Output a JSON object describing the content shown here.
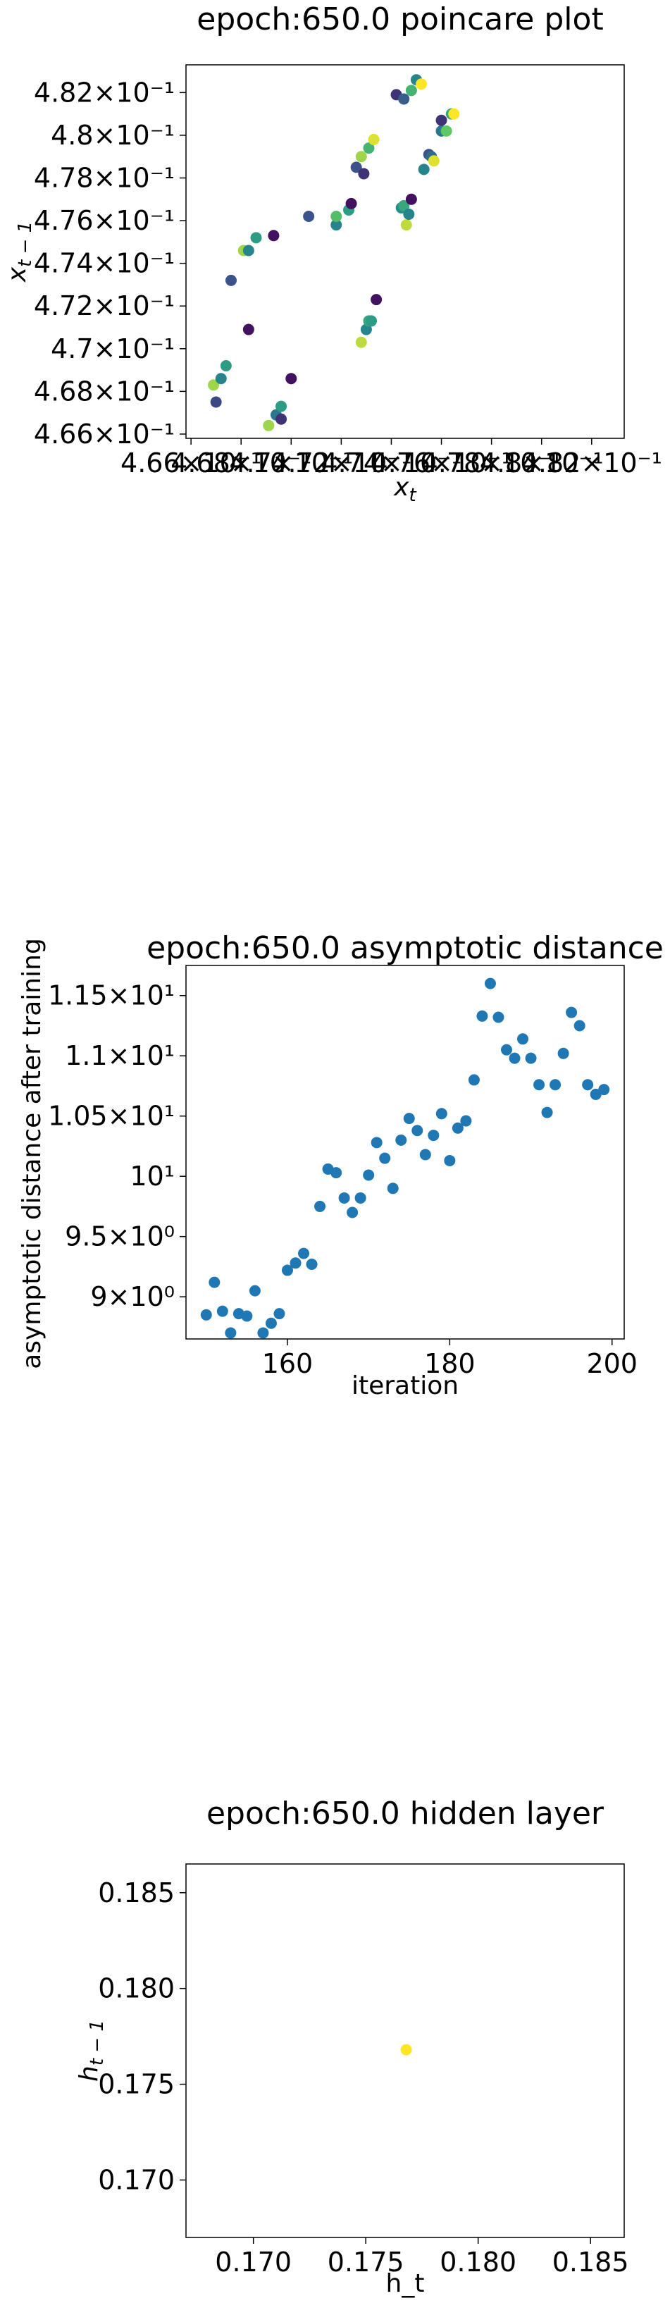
{
  "chart_data": [
    {
      "type": "scatter",
      "title": "epoch:650.0 poincare plot",
      "xlabel": "x_t",
      "ylabel": "x_{t-1}",
      "x_ticks": [
        {
          "value": 0.466,
          "label": "4.66×10⁻¹"
        },
        {
          "value": 0.468,
          "label": "4.68×10⁻¹"
        },
        {
          "value": 0.47,
          "label": "4.7×10⁻¹"
        },
        {
          "value": 0.472,
          "label": "4.72×10⁻¹"
        },
        {
          "value": 0.474,
          "label": "4.74×10⁻¹"
        },
        {
          "value": 0.476,
          "label": "4.76×10⁻¹"
        },
        {
          "value": 0.478,
          "label": "4.78×10⁻¹"
        },
        {
          "value": 0.48,
          "label": "4.8×10⁻¹"
        },
        {
          "value": 0.482,
          "label": "4.82×10⁻¹"
        }
      ],
      "y_ticks": [
        {
          "value": 0.466,
          "label": "4.66×10⁻¹"
        },
        {
          "value": 0.468,
          "label": "4.68×10⁻¹"
        },
        {
          "value": 0.47,
          "label": "4.7×10⁻¹"
        },
        {
          "value": 0.472,
          "label": "4.72×10⁻¹"
        },
        {
          "value": 0.474,
          "label": "4.74×10⁻¹"
        },
        {
          "value": 0.476,
          "label": "4.76×10⁻¹"
        },
        {
          "value": 0.478,
          "label": "4.78×10⁻¹"
        },
        {
          "value": 0.48,
          "label": "4.8×10⁻¹"
        },
        {
          "value": 0.482,
          "label": "4.82×10⁻¹"
        }
      ],
      "xlim": [
        0.4658,
        0.4833
      ],
      "ylim": [
        0.4658,
        0.4833
      ],
      "log_scale": true,
      "grid": false,
      "colormap": "viridis",
      "points": [
        {
          "x": 0.4669,
          "y": 0.4683,
          "c": 0.85
        },
        {
          "x": 0.467,
          "y": 0.4675,
          "c": 0.22
        },
        {
          "x": 0.4672,
          "y": 0.4686,
          "c": 0.45
        },
        {
          "x": 0.4674,
          "y": 0.4692,
          "c": 0.55
        },
        {
          "x": 0.4676,
          "y": 0.4732,
          "c": 0.25
        },
        {
          "x": 0.4681,
          "y": 0.4746,
          "c": 0.85
        },
        {
          "x": 0.4683,
          "y": 0.4709,
          "c": 0.05
        },
        {
          "x": 0.4683,
          "y": 0.4746,
          "c": 0.45
        },
        {
          "x": 0.4686,
          "y": 0.4752,
          "c": 0.55
        },
        {
          "x": 0.4691,
          "y": 0.4664,
          "c": 0.85
        },
        {
          "x": 0.4693,
          "y": 0.4753,
          "c": 0.05
        },
        {
          "x": 0.4694,
          "y": 0.4669,
          "c": 0.4
        },
        {
          "x": 0.4696,
          "y": 0.4673,
          "c": 0.55
        },
        {
          "x": 0.4696,
          "y": 0.4667,
          "c": 0.15
        },
        {
          "x": 0.47,
          "y": 0.4686,
          "c": 0.05
        },
        {
          "x": 0.4707,
          "y": 0.4762,
          "c": 0.25
        },
        {
          "x": 0.4718,
          "y": 0.4758,
          "c": 0.45
        },
        {
          "x": 0.4718,
          "y": 0.4762,
          "c": 0.7
        },
        {
          "x": 0.4723,
          "y": 0.4765,
          "c": 0.55
        },
        {
          "x": 0.4724,
          "y": 0.4768,
          "c": 0.05
        },
        {
          "x": 0.4726,
          "y": 0.4785,
          "c": 0.25
        },
        {
          "x": 0.4728,
          "y": 0.479,
          "c": 0.85
        },
        {
          "x": 0.4728,
          "y": 0.4703,
          "c": 0.9
        },
        {
          "x": 0.4729,
          "y": 0.4782,
          "c": 0.15
        },
        {
          "x": 0.473,
          "y": 0.4709,
          "c": 0.45
        },
        {
          "x": 0.4731,
          "y": 0.4794,
          "c": 0.65
        },
        {
          "x": 0.4731,
          "y": 0.4713,
          "c": 0.6
        },
        {
          "x": 0.4732,
          "y": 0.4713,
          "c": 0.55
        },
        {
          "x": 0.4733,
          "y": 0.4798,
          "c": 0.95
        },
        {
          "x": 0.4734,
          "y": 0.4723,
          "c": 0.05
        },
        {
          "x": 0.4742,
          "y": 0.4819,
          "c": 0.15
        },
        {
          "x": 0.4744,
          "y": 0.4766,
          "c": 0.5
        },
        {
          "x": 0.4745,
          "y": 0.4817,
          "c": 0.3
        },
        {
          "x": 0.4745,
          "y": 0.4767,
          "c": 0.6
        },
        {
          "x": 0.4746,
          "y": 0.4758,
          "c": 0.9
        },
        {
          "x": 0.4747,
          "y": 0.4763,
          "c": 0.45
        },
        {
          "x": 0.4748,
          "y": 0.4821,
          "c": 0.65
        },
        {
          "x": 0.4748,
          "y": 0.477,
          "c": 0.05
        },
        {
          "x": 0.475,
          "y": 0.4826,
          "c": 0.45
        },
        {
          "x": 0.4752,
          "y": 0.4824,
          "c": 1.0
        },
        {
          "x": 0.4753,
          "y": 0.4784,
          "c": 0.45
        },
        {
          "x": 0.4755,
          "y": 0.4791,
          "c": 0.25
        },
        {
          "x": 0.4756,
          "y": 0.479,
          "c": 0.35
        },
        {
          "x": 0.4757,
          "y": 0.4788,
          "c": 0.95
        },
        {
          "x": 0.476,
          "y": 0.4802,
          "c": 0.4
        },
        {
          "x": 0.476,
          "y": 0.4807,
          "c": 0.15
        },
        {
          "x": 0.4762,
          "y": 0.4802,
          "c": 0.75
        },
        {
          "x": 0.4764,
          "y": 0.481,
          "c": 0.6
        },
        {
          "x": 0.4765,
          "y": 0.481,
          "c": 1.0
        }
      ]
    },
    {
      "type": "scatter",
      "title": "epoch:650.0 asymptotic distance",
      "xlabel": "iteration",
      "ylabel": "asymptotic distance after training",
      "x_ticks": [
        {
          "value": 160,
          "label": "160"
        },
        {
          "value": 180,
          "label": "180"
        },
        {
          "value": 200,
          "label": "200"
        }
      ],
      "y_ticks": [
        {
          "value": 9.0,
          "label": "9×10⁰"
        },
        {
          "value": 9.5,
          "label": "9.5×10⁰"
        },
        {
          "value": 10.0,
          "label": "10¹"
        },
        {
          "value": 10.5,
          "label": "1.05×10¹"
        },
        {
          "value": 11.0,
          "label": "1.1×10¹"
        },
        {
          "value": 11.5,
          "label": "1.15×10¹"
        }
      ],
      "xlim": [
        147.5,
        201.5
      ],
      "ylim": [
        8.65,
        11.75
      ],
      "log_scale": true,
      "grid": false,
      "color": "#1f77b4",
      "x": [
        150,
        151,
        152,
        153,
        154,
        155,
        156,
        157,
        158,
        159,
        160,
        161,
        162,
        163,
        164,
        165,
        166,
        167,
        168,
        169,
        170,
        171,
        172,
        173,
        174,
        175,
        176,
        177,
        178,
        179,
        180,
        181,
        182,
        183,
        184,
        185,
        186,
        187,
        188,
        189,
        190,
        191,
        192,
        193,
        194,
        195,
        196,
        197,
        198,
        199
      ],
      "values": [
        8.85,
        9.12,
        8.88,
        8.7,
        8.86,
        8.84,
        9.05,
        8.7,
        8.78,
        8.86,
        9.22,
        9.28,
        9.36,
        9.27,
        9.75,
        10.06,
        10.03,
        9.82,
        9.7,
        9.82,
        10.01,
        10.28,
        10.15,
        9.9,
        10.3,
        10.48,
        10.38,
        10.18,
        10.34,
        10.52,
        10.13,
        10.4,
        10.46,
        10.8,
        11.33,
        11.6,
        11.32,
        11.05,
        10.98,
        11.14,
        10.98,
        10.76,
        10.53,
        10.76,
        11.02,
        11.36,
        11.25,
        10.76,
        10.68,
        10.72
      ]
    },
    {
      "type": "scatter",
      "title": "epoch:650.0 hidden layer",
      "xlabel": "h_t",
      "ylabel": "h_{t-1}",
      "x_ticks": [
        {
          "value": 0.17,
          "label": "0.170"
        },
        {
          "value": 0.175,
          "label": "0.175"
        },
        {
          "value": 0.18,
          "label": "0.180"
        },
        {
          "value": 0.185,
          "label": "0.185"
        }
      ],
      "y_ticks": [
        {
          "value": 0.17,
          "label": "0.170"
        },
        {
          "value": 0.175,
          "label": "0.175"
        },
        {
          "value": 0.18,
          "label": "0.180"
        },
        {
          "value": 0.185,
          "label": "0.185"
        }
      ],
      "xlim": [
        0.167,
        0.1865
      ],
      "ylim": [
        0.167,
        0.1865
      ],
      "grid": false,
      "points": [
        {
          "x": 0.1768,
          "y": 0.1768,
          "color": "#fde725"
        }
      ]
    }
  ]
}
